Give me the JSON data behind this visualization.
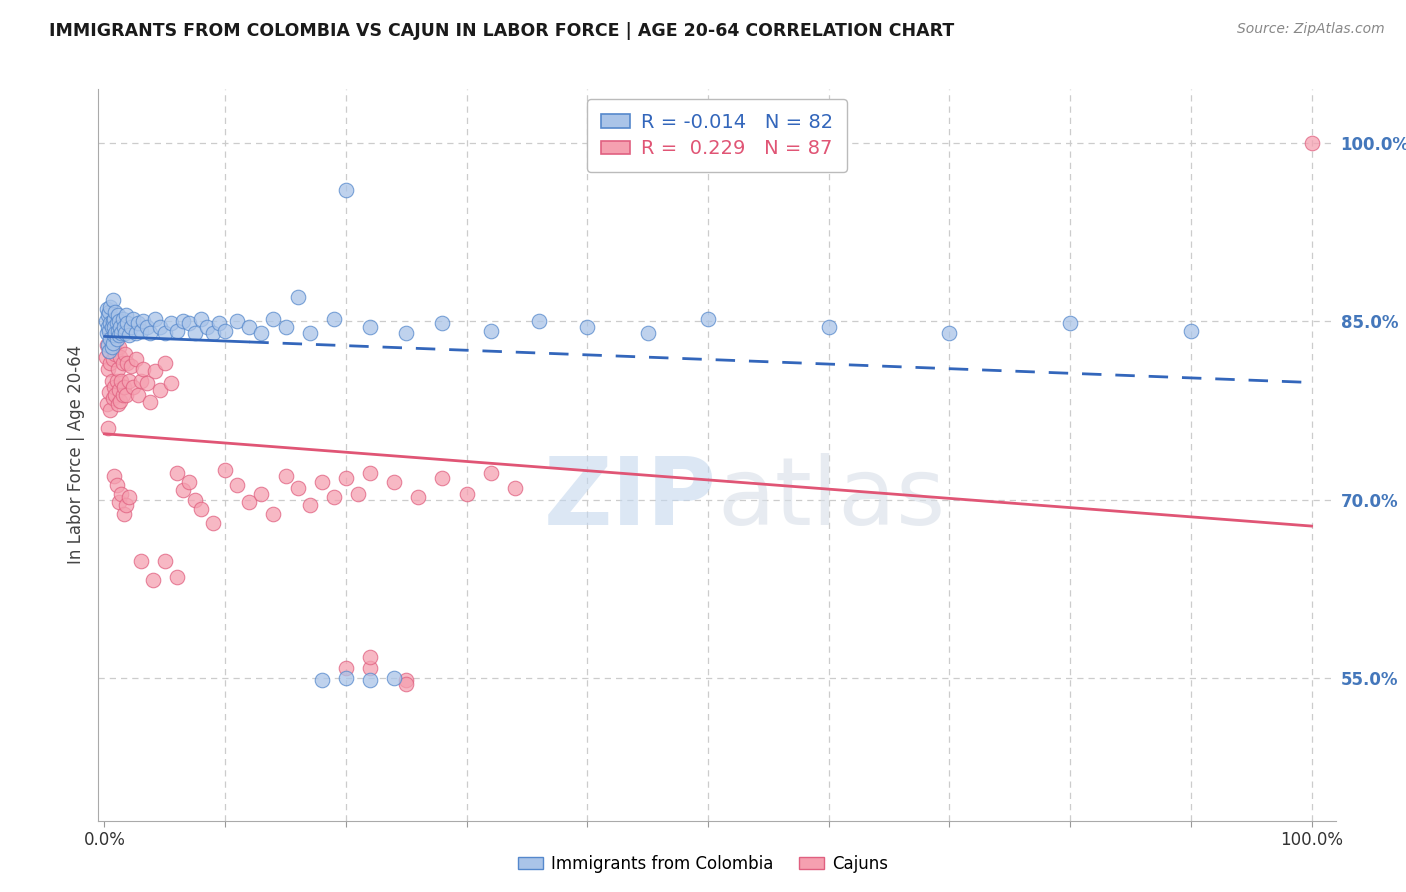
{
  "title": "IMMIGRANTS FROM COLOMBIA VS CAJUN IN LABOR FORCE | AGE 20-64 CORRELATION CHART",
  "source": "Source: ZipAtlas.com",
  "ylabel": "In Labor Force | Age 20-64",
  "legend_label1": "Immigrants from Colombia",
  "legend_label2": "Cajuns",
  "r1": -0.014,
  "n1": 82,
  "r2": 0.229,
  "n2": 87,
  "color1": "#aac4e8",
  "color2": "#f5a0b0",
  "edge1": "#5588cc",
  "edge2": "#e06080",
  "trendline1_color": "#3366bb",
  "trendline2_color": "#e05575",
  "gridline_color": "#cccccc",
  "ymin": 0.43,
  "ymax": 1.045,
  "xmin": -0.005,
  "xmax": 1.02,
  "colombia_x": [
    0.001,
    0.002,
    0.002,
    0.003,
    0.003,
    0.003,
    0.004,
    0.004,
    0.004,
    0.005,
    0.005,
    0.005,
    0.006,
    0.006,
    0.007,
    0.007,
    0.007,
    0.008,
    0.008,
    0.008,
    0.009,
    0.009,
    0.01,
    0.01,
    0.011,
    0.011,
    0.012,
    0.012,
    0.013,
    0.014,
    0.015,
    0.016,
    0.017,
    0.018,
    0.019,
    0.02,
    0.022,
    0.024,
    0.026,
    0.028,
    0.03,
    0.032,
    0.035,
    0.038,
    0.042,
    0.046,
    0.05,
    0.055,
    0.06,
    0.065,
    0.07,
    0.075,
    0.08,
    0.085,
    0.09,
    0.095,
    0.1,
    0.11,
    0.12,
    0.13,
    0.14,
    0.15,
    0.17,
    0.19,
    0.22,
    0.25,
    0.28,
    0.32,
    0.36,
    0.4,
    0.45,
    0.5,
    0.6,
    0.7,
    0.8,
    0.9,
    0.22,
    0.18,
    0.2,
    0.24,
    0.2,
    0.16
  ],
  "colombia_y": [
    0.85,
    0.84,
    0.86,
    0.83,
    0.845,
    0.855,
    0.825,
    0.842,
    0.858,
    0.835,
    0.848,
    0.862,
    0.828,
    0.845,
    0.832,
    0.85,
    0.868,
    0.838,
    0.852,
    0.845,
    0.84,
    0.858,
    0.835,
    0.848,
    0.842,
    0.855,
    0.838,
    0.85,
    0.845,
    0.84,
    0.852,
    0.845,
    0.84,
    0.855,
    0.848,
    0.838,
    0.845,
    0.852,
    0.84,
    0.848,
    0.842,
    0.85,
    0.845,
    0.84,
    0.852,
    0.845,
    0.84,
    0.848,
    0.842,
    0.85,
    0.848,
    0.84,
    0.852,
    0.845,
    0.84,
    0.848,
    0.842,
    0.85,
    0.845,
    0.84,
    0.852,
    0.845,
    0.84,
    0.852,
    0.845,
    0.84,
    0.848,
    0.842,
    0.85,
    0.845,
    0.84,
    0.852,
    0.845,
    0.84,
    0.848,
    0.842,
    0.548,
    0.548,
    0.55,
    0.55,
    0.96,
    0.87
  ],
  "cajun_x": [
    0.001,
    0.002,
    0.002,
    0.003,
    0.003,
    0.004,
    0.004,
    0.005,
    0.005,
    0.006,
    0.006,
    0.007,
    0.007,
    0.008,
    0.008,
    0.009,
    0.009,
    0.01,
    0.01,
    0.011,
    0.011,
    0.012,
    0.012,
    0.013,
    0.013,
    0.014,
    0.015,
    0.015,
    0.016,
    0.017,
    0.018,
    0.019,
    0.02,
    0.022,
    0.024,
    0.026,
    0.028,
    0.03,
    0.032,
    0.035,
    0.038,
    0.042,
    0.046,
    0.05,
    0.055,
    0.06,
    0.065,
    0.07,
    0.075,
    0.08,
    0.09,
    0.1,
    0.11,
    0.12,
    0.13,
    0.14,
    0.15,
    0.16,
    0.17,
    0.18,
    0.19,
    0.2,
    0.21,
    0.22,
    0.24,
    0.26,
    0.28,
    0.3,
    0.32,
    0.34,
    0.008,
    0.01,
    0.012,
    0.014,
    0.016,
    0.018,
    0.02,
    0.03,
    0.04,
    0.05,
    0.06,
    0.22,
    0.25,
    0.2,
    0.22,
    0.25,
    1.0
  ],
  "cajun_y": [
    0.82,
    0.78,
    0.83,
    0.76,
    0.81,
    0.79,
    0.825,
    0.775,
    0.815,
    0.8,
    0.84,
    0.785,
    0.818,
    0.795,
    0.83,
    0.788,
    0.822,
    0.8,
    0.835,
    0.78,
    0.81,
    0.792,
    0.828,
    0.783,
    0.82,
    0.8,
    0.788,
    0.815,
    0.795,
    0.822,
    0.788,
    0.815,
    0.8,
    0.812,
    0.795,
    0.818,
    0.788,
    0.8,
    0.81,
    0.798,
    0.782,
    0.808,
    0.792,
    0.815,
    0.798,
    0.722,
    0.708,
    0.715,
    0.7,
    0.692,
    0.68,
    0.725,
    0.712,
    0.698,
    0.705,
    0.688,
    0.72,
    0.71,
    0.695,
    0.715,
    0.702,
    0.718,
    0.705,
    0.722,
    0.715,
    0.702,
    0.718,
    0.705,
    0.722,
    0.71,
    0.72,
    0.712,
    0.698,
    0.705,
    0.688,
    0.695,
    0.702,
    0.648,
    0.632,
    0.648,
    0.635,
    0.558,
    0.548,
    0.558,
    0.568,
    0.545,
    1.0
  ]
}
